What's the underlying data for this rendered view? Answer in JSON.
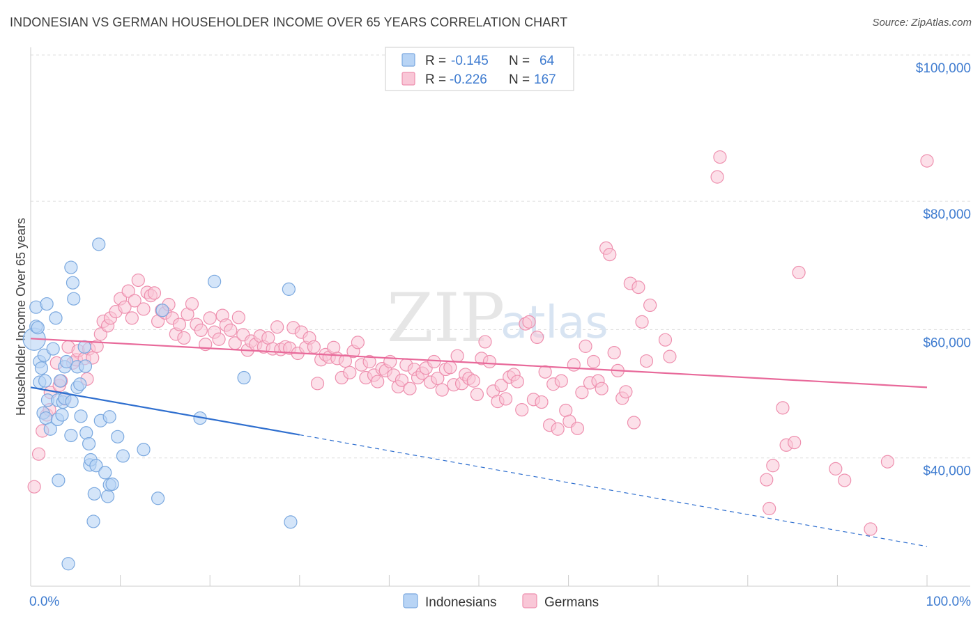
{
  "header": {
    "title": "INDONESIAN VS GERMAN HOUSEHOLDER INCOME OVER 65 YEARS CORRELATION CHART",
    "source": "Source: ZipAtlas.com"
  },
  "watermark": {
    "part1": "ZIP",
    "part2": "atlas"
  },
  "legend_top": {
    "rows": [
      {
        "r_label": "R =",
        "r_value": "-0.145",
        "n_label": "N =",
        "n_value": "64"
      },
      {
        "r_label": "R =",
        "r_value": "-0.226",
        "n_label": "N =",
        "n_value": "167"
      }
    ]
  },
  "legend_bottom": {
    "items": [
      "Indonesians",
      "Germans"
    ]
  },
  "colors": {
    "indonesians_fill": "#b8d4f5",
    "indonesians_stroke": "#7aa8df",
    "indonesians_line": "#2f6fcf",
    "germans_fill": "#f9c7d7",
    "germans_stroke": "#ee8fae",
    "germans_line": "#e8699a",
    "tick_text": "#3f7cd0"
  },
  "chart_data": {
    "type": "scatter",
    "title": "INDONESIAN VS GERMAN HOUSEHOLDER INCOME OVER 65 YEARS CORRELATION CHART",
    "xlabel": "",
    "ylabel": "Householder Income Over 65 years",
    "xlim": [
      0,
      100
    ],
    "ylim": [
      20000,
      104000
    ],
    "x_tick_labels": [
      "0.0%",
      "100.0%"
    ],
    "y_ticks": [
      40000,
      60000,
      80000,
      100000
    ],
    "y_tick_labels": [
      "$40,000",
      "$60,000",
      "$80,000",
      "$100,000"
    ],
    "grid": "horizontal dashed",
    "legend_position": "top-center and bottom-center",
    "series": [
      {
        "name": "Indonesians",
        "r": -0.145,
        "n": 64,
        "trend": {
          "x_start": 0,
          "y_start": 51000,
          "x_solid_end": 30,
          "y_solid_end": 43600,
          "x_end": 100,
          "y_end": 26200
        },
        "points": [
          [
            0.4,
            58500
          ],
          [
            0.6,
            60500
          ],
          [
            0.6,
            63500
          ],
          [
            0.8,
            60300
          ],
          [
            1.0,
            55000
          ],
          [
            1.0,
            51800
          ],
          [
            1.2,
            54000
          ],
          [
            1.4,
            47000
          ],
          [
            1.5,
            56000
          ],
          [
            1.6,
            52000
          ],
          [
            1.7,
            46200
          ],
          [
            1.8,
            64000
          ],
          [
            1.9,
            49000
          ],
          [
            2.2,
            44500
          ],
          [
            2.5,
            57000
          ],
          [
            2.8,
            61800
          ],
          [
            3.0,
            49000
          ],
          [
            3.0,
            46000
          ],
          [
            3.1,
            36500
          ],
          [
            3.3,
            52000
          ],
          [
            3.5,
            46700
          ],
          [
            3.6,
            48700
          ],
          [
            3.8,
            54200
          ],
          [
            3.8,
            49300
          ],
          [
            4.0,
            55000
          ],
          [
            4.2,
            23500
          ],
          [
            4.5,
            43500
          ],
          [
            4.5,
            69700
          ],
          [
            4.6,
            48800
          ],
          [
            4.7,
            67300
          ],
          [
            4.8,
            64800
          ],
          [
            5.2,
            51000
          ],
          [
            5.2,
            54200
          ],
          [
            5.5,
            51500
          ],
          [
            5.6,
            46500
          ],
          [
            6.0,
            57300
          ],
          [
            6.1,
            54300
          ],
          [
            6.2,
            43900
          ],
          [
            6.5,
            42200
          ],
          [
            6.6,
            38900
          ],
          [
            6.7,
            39700
          ],
          [
            7.0,
            30100
          ],
          [
            7.1,
            34400
          ],
          [
            7.3,
            38800
          ],
          [
            7.6,
            73300
          ],
          [
            7.8,
            45800
          ],
          [
            8.3,
            37700
          ],
          [
            8.6,
            34000
          ],
          [
            8.8,
            46400
          ],
          [
            8.8,
            35800
          ],
          [
            9.1,
            35900
          ],
          [
            9.7,
            43300
          ],
          [
            10.3,
            40300
          ],
          [
            12.6,
            41300
          ],
          [
            14.2,
            33700
          ],
          [
            14.7,
            63000
          ],
          [
            18.9,
            46200
          ],
          [
            20.5,
            67500
          ],
          [
            23.8,
            52500
          ],
          [
            28.8,
            66300
          ],
          [
            29.0,
            30000
          ]
        ]
      },
      {
        "name": "Germans",
        "r": -0.226,
        "n": 167,
        "trend": {
          "x_start": 0,
          "y_start": 58600,
          "x_end": 100,
          "y_end": 51000
        },
        "points": [
          [
            0.4,
            35500
          ],
          [
            0.9,
            40600
          ],
          [
            1.3,
            44200
          ],
          [
            1.8,
            46700
          ],
          [
            2.1,
            47500
          ],
          [
            2.2,
            50200
          ],
          [
            2.9,
            54800
          ],
          [
            3.2,
            51300
          ],
          [
            3.4,
            52000
          ],
          [
            3.8,
            49200
          ],
          [
            4.2,
            57300
          ],
          [
            4.7,
            54800
          ],
          [
            5.1,
            55300
          ],
          [
            5.3,
            56700
          ],
          [
            6.0,
            55500
          ],
          [
            6.3,
            52300
          ],
          [
            6.5,
            57000
          ],
          [
            6.9,
            55600
          ],
          [
            7.4,
            57400
          ],
          [
            7.8,
            59300
          ],
          [
            8.1,
            61300
          ],
          [
            8.6,
            60600
          ],
          [
            8.9,
            61800
          ],
          [
            9.5,
            62800
          ],
          [
            10.0,
            64800
          ],
          [
            10.5,
            63500
          ],
          [
            10.9,
            66000
          ],
          [
            11.3,
            61800
          ],
          [
            11.6,
            64500
          ],
          [
            12.0,
            67700
          ],
          [
            12.6,
            63200
          ],
          [
            13.0,
            65800
          ],
          [
            13.4,
            65300
          ],
          [
            13.8,
            65700
          ],
          [
            14.2,
            61300
          ],
          [
            14.6,
            63000
          ],
          [
            15.0,
            62600
          ],
          [
            15.4,
            63900
          ],
          [
            15.8,
            61800
          ],
          [
            16.2,
            59300
          ],
          [
            16.6,
            60800
          ],
          [
            17.1,
            58700
          ],
          [
            17.5,
            62400
          ],
          [
            18.0,
            64000
          ],
          [
            18.5,
            60800
          ],
          [
            19.0,
            59900
          ],
          [
            19.5,
            57700
          ],
          [
            20.0,
            61800
          ],
          [
            20.5,
            59600
          ],
          [
            21.0,
            58500
          ],
          [
            21.4,
            62200
          ],
          [
            21.8,
            60700
          ],
          [
            22.3,
            59900
          ],
          [
            22.8,
            57900
          ],
          [
            23.2,
            61900
          ],
          [
            23.7,
            59200
          ],
          [
            24.2,
            56800
          ],
          [
            24.6,
            58200
          ],
          [
            25.1,
            57700
          ],
          [
            25.6,
            59000
          ],
          [
            26.0,
            57300
          ],
          [
            26.5,
            58700
          ],
          [
            27.0,
            57000
          ],
          [
            27.5,
            60400
          ],
          [
            27.9,
            56900
          ],
          [
            28.4,
            57300
          ],
          [
            28.9,
            57100
          ],
          [
            29.3,
            60300
          ],
          [
            29.8,
            56300
          ],
          [
            30.2,
            59600
          ],
          [
            30.7,
            57200
          ],
          [
            31.1,
            58700
          ],
          [
            31.6,
            57300
          ],
          [
            32.0,
            51600
          ],
          [
            32.4,
            55300
          ],
          [
            32.9,
            56100
          ],
          [
            33.3,
            55700
          ],
          [
            33.8,
            57200
          ],
          [
            34.2,
            55500
          ],
          [
            34.7,
            52500
          ],
          [
            35.1,
            55100
          ],
          [
            35.6,
            53300
          ],
          [
            36.0,
            56600
          ],
          [
            36.5,
            58000
          ],
          [
            36.9,
            54500
          ],
          [
            37.4,
            52500
          ],
          [
            37.8,
            55000
          ],
          [
            38.3,
            52900
          ],
          [
            38.7,
            51900
          ],
          [
            39.2,
            53900
          ],
          [
            39.6,
            53600
          ],
          [
            40.1,
            55000
          ],
          [
            40.5,
            52900
          ],
          [
            41.0,
            51100
          ],
          [
            41.4,
            52100
          ],
          [
            41.9,
            54500
          ],
          [
            42.3,
            50800
          ],
          [
            42.8,
            53800
          ],
          [
            43.2,
            52500
          ],
          [
            43.7,
            53200
          ],
          [
            44.1,
            54000
          ],
          [
            44.6,
            51800
          ],
          [
            45.0,
            55000
          ],
          [
            45.4,
            52400
          ],
          [
            45.9,
            50600
          ],
          [
            46.3,
            53800
          ],
          [
            46.8,
            54100
          ],
          [
            47.2,
            51400
          ],
          [
            47.6,
            55900
          ],
          [
            48.1,
            51600
          ],
          [
            48.5,
            53000
          ],
          [
            48.9,
            52400
          ],
          [
            49.4,
            52000
          ],
          [
            49.8,
            49900
          ],
          [
            50.3,
            55500
          ],
          [
            50.7,
            58100
          ],
          [
            51.2,
            55000
          ],
          [
            51.6,
            50400
          ],
          [
            52.1,
            48800
          ],
          [
            52.5,
            51300
          ],
          [
            53.0,
            49200
          ],
          [
            53.4,
            52600
          ],
          [
            53.9,
            53000
          ],
          [
            54.3,
            51900
          ],
          [
            54.8,
            47500
          ],
          [
            55.2,
            60900
          ],
          [
            55.6,
            61200
          ],
          [
            56.1,
            49100
          ],
          [
            56.5,
            58800
          ],
          [
            57.0,
            48700
          ],
          [
            57.4,
            53400
          ],
          [
            57.9,
            45100
          ],
          [
            58.3,
            51500
          ],
          [
            58.8,
            44500
          ],
          [
            59.2,
            52000
          ],
          [
            59.7,
            47400
          ],
          [
            60.1,
            45700
          ],
          [
            60.6,
            54500
          ],
          [
            61.0,
            44600
          ],
          [
            61.5,
            50200
          ],
          [
            61.9,
            57400
          ],
          [
            62.4,
            51700
          ],
          [
            62.8,
            55000
          ],
          [
            63.3,
            52000
          ],
          [
            63.7,
            50800
          ],
          [
            64.2,
            72700
          ],
          [
            64.6,
            71700
          ],
          [
            65.1,
            56400
          ],
          [
            65.5,
            53600
          ],
          [
            66.0,
            49300
          ],
          [
            66.4,
            50300
          ],
          [
            66.9,
            67200
          ],
          [
            67.3,
            45500
          ],
          [
            67.8,
            66600
          ],
          [
            68.2,
            61200
          ],
          [
            68.7,
            55100
          ],
          [
            69.1,
            63800
          ],
          [
            70.8,
            58400
          ],
          [
            71.3,
            55800
          ],
          [
            76.6,
            83800
          ],
          [
            76.9,
            86900
          ],
          [
            82.1,
            36600
          ],
          [
            82.4,
            32100
          ],
          [
            82.8,
            38800
          ],
          [
            83.9,
            47800
          ],
          [
            84.3,
            42000
          ],
          [
            85.2,
            42400
          ],
          [
            85.7,
            68900
          ],
          [
            89.8,
            38300
          ],
          [
            90.8,
            36500
          ],
          [
            93.7,
            28900
          ],
          [
            95.6,
            39400
          ],
          [
            100.0,
            86300
          ]
        ]
      }
    ]
  }
}
